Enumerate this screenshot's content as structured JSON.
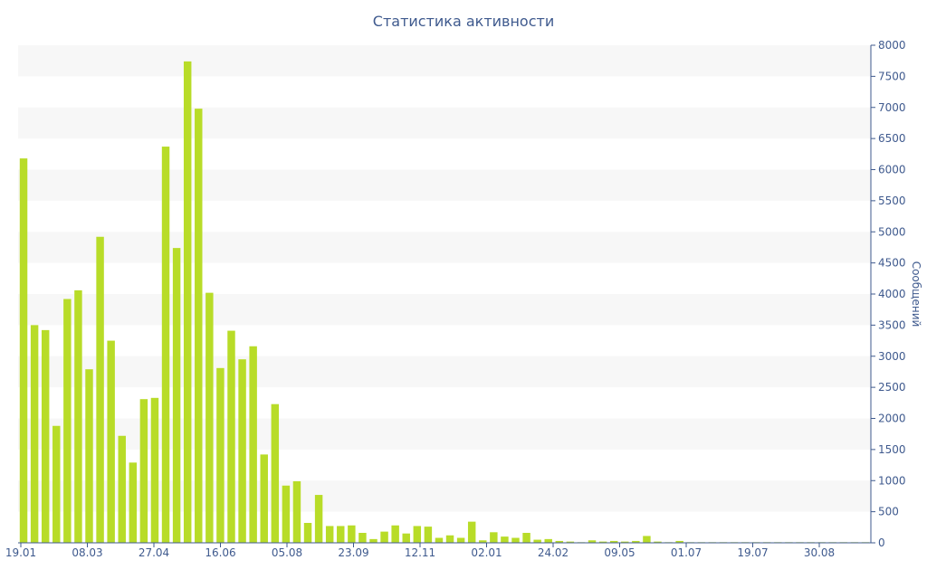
{
  "chart_data": {
    "type": "bar",
    "title": "Статистика активности",
    "ylabel": "Сообщений",
    "xlabel": "",
    "ylim": [
      0,
      8000
    ],
    "y_ticks": [
      0,
      500,
      1000,
      1500,
      2000,
      2500,
      3000,
      3500,
      4000,
      4500,
      5000,
      5500,
      6000,
      6500,
      7000,
      7500,
      8000
    ],
    "x_tick_labels": [
      "19.01",
      "08.03",
      "27.04",
      "16.06",
      "05.08",
      "23.09",
      "12.11",
      "02.01",
      "24.02",
      "09.05",
      "01.07",
      "19.07",
      "30.08"
    ],
    "values": [
      6180,
      3500,
      3420,
      1880,
      3920,
      4060,
      2790,
      4920,
      3250,
      1720,
      1290,
      2310,
      2330,
      6370,
      4740,
      7740,
      6980,
      4020,
      2810,
      3410,
      2950,
      3160,
      1420,
      2230,
      920,
      990,
      320,
      770,
      270,
      270,
      280,
      160,
      60,
      180,
      280,
      150,
      270,
      260,
      80,
      120,
      80,
      340,
      40,
      170,
      100,
      80,
      160,
      50,
      60,
      30,
      20,
      10,
      40,
      20,
      30,
      20,
      30,
      110,
      20,
      10,
      30,
      10,
      10,
      10,
      10,
      10,
      10,
      10,
      10,
      10,
      10,
      10,
      10,
      10,
      10,
      10,
      10,
      10
    ],
    "grid": true,
    "grid_style": "alternating horizontal bands",
    "legend": "none",
    "colors": {
      "bar": "#b8dc28",
      "band": "#f7f7f7",
      "axis": "#3f5a8e",
      "text": "#3f5a8e"
    }
  }
}
